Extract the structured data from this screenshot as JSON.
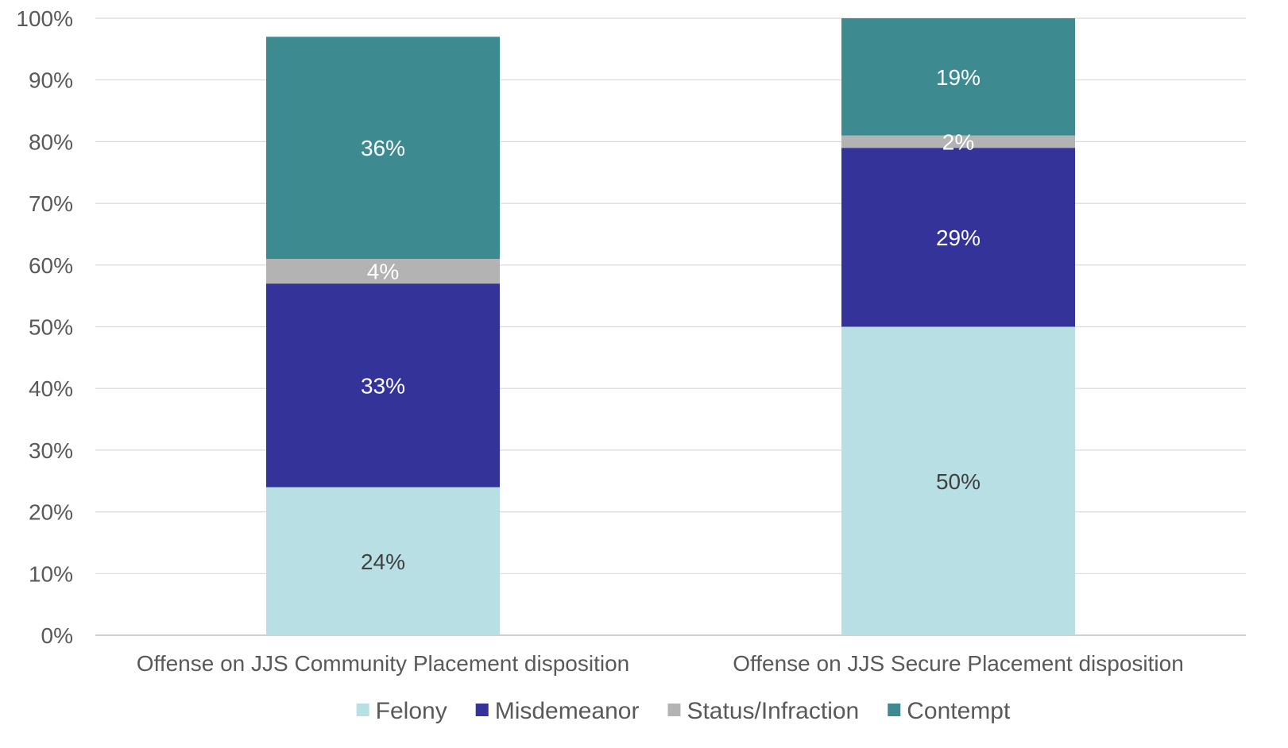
{
  "chart_data": {
    "type": "bar",
    "stacked": true,
    "title": "",
    "xlabel": "",
    "ylabel": "",
    "ylim": [
      0,
      100
    ],
    "y_ticks": [
      "0%",
      "10%",
      "20%",
      "30%",
      "40%",
      "50%",
      "60%",
      "70%",
      "80%",
      "90%",
      "100%"
    ],
    "grid": true,
    "legend_position": "bottom",
    "categories": [
      "Offense on JJS Community Placement disposition",
      "Offense on JJS Secure Placement disposition"
    ],
    "series": [
      {
        "name": "Felony",
        "values": [
          24,
          50
        ],
        "labels": [
          "24%",
          "50%"
        ],
        "color": "#B8E0E4",
        "label_color": "#404040"
      },
      {
        "name": "Misdemeanor",
        "values": [
          33,
          29
        ],
        "labels": [
          "33%",
          "29%"
        ],
        "color": "#333399",
        "label_color": "#FFFFFF"
      },
      {
        "name": "Status/Infraction",
        "values": [
          4,
          2
        ],
        "labels": [
          "4%",
          "2%"
        ],
        "color": "#B3B3B3",
        "label_color": "#FFFFFF"
      },
      {
        "name": "Contempt",
        "values": [
          36,
          19
        ],
        "labels": [
          "36%",
          "19%"
        ],
        "color": "#3D8B91",
        "label_color": "#FFFFFF"
      }
    ]
  }
}
